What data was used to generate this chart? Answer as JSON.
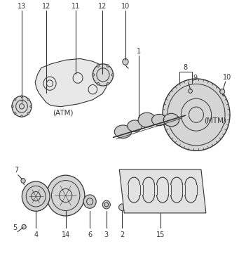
{
  "background_color": "#ffffff",
  "figure_width": 3.51,
  "figure_height": 3.74,
  "dpi": 100,
  "line_color": "#333333",
  "text_color": "#333333"
}
